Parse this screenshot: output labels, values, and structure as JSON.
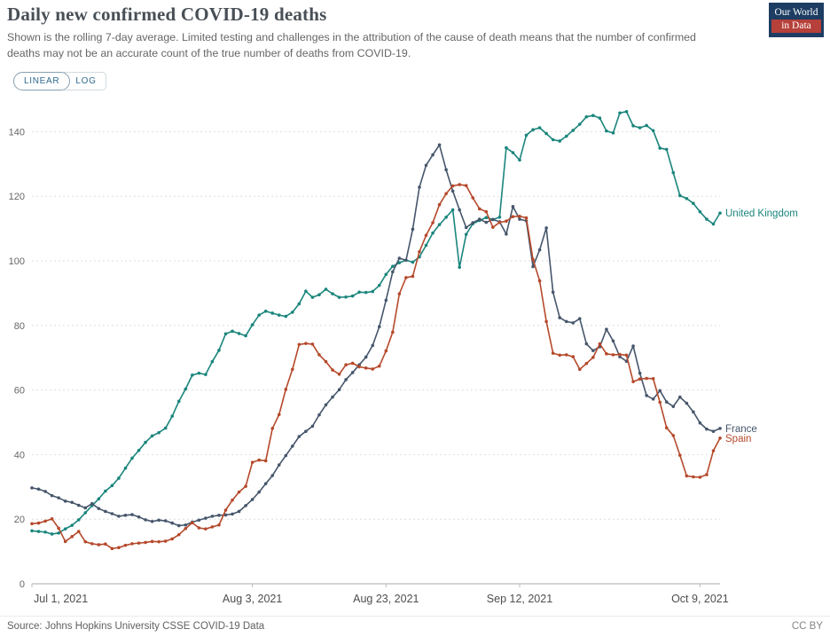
{
  "header": {
    "title": "Daily new confirmed COVID-19 deaths",
    "subtitle": "Shown is the rolling 7-day average. Limited testing and challenges in the attribution of the cause of death means that the number of confirmed deaths may not be an accurate count of the true number of deaths from COVID-19.",
    "logo": {
      "line1": "Our World",
      "line2": "in Data"
    }
  },
  "toolbar": {
    "linear_label": "LINEAR",
    "log_label": "LOG",
    "active_scale": "LINEAR"
  },
  "footer": {
    "source": "Source: Johns Hopkins University CSSE COVID-19 Data",
    "license": "CC BY"
  },
  "chart_data": {
    "type": "line",
    "title": "Daily new confirmed COVID-19 deaths",
    "x_unit": "date (daily points, rolling 7-day average)",
    "x_start_date": "Jul 1, 2021",
    "x_end_date": "Oct 12, 2021",
    "x_ticks": [
      {
        "day": 0,
        "label": "Jul 1, 2021"
      },
      {
        "day": 33,
        "label": "Aug 3, 2021"
      },
      {
        "day": 53,
        "label": "Aug 23, 2021"
      },
      {
        "day": 73,
        "label": "Sep 12, 2021"
      },
      {
        "day": 100,
        "label": "Oct 9, 2021"
      }
    ],
    "y_ticks": [
      0,
      20,
      40,
      60,
      80,
      100,
      120,
      140
    ],
    "ylim": [
      0,
      150
    ],
    "grid": true,
    "legend_position": "right-end-labels",
    "series": [
      {
        "name": "United Kingdom",
        "color": "#1a857c",
        "values": [
          16.4,
          16.2,
          16.0,
          15.4,
          15.7,
          17.0,
          18.1,
          19.8,
          22.0,
          24.2,
          26.3,
          28.7,
          30.4,
          32.7,
          35.8,
          38.9,
          41.3,
          43.8,
          45.8,
          46.8,
          48.2,
          51.9,
          56.5,
          60.3,
          64.6,
          65.2,
          64.8,
          68.8,
          72.3,
          77.4,
          78.2,
          77.5,
          76.8,
          80.2,
          83.2,
          84.4,
          83.8,
          83.2,
          82.8,
          84.1,
          86.7,
          90.6,
          88.7,
          89.5,
          91.2,
          89.8,
          88.7,
          88.8,
          89.1,
          90.3,
          90.2,
          90.5,
          92.4,
          95.8,
          98.3,
          99.4,
          100.2,
          99.6,
          101.2,
          104.8,
          108.6,
          111.2,
          113.5,
          115.8,
          98.0,
          108.2,
          111.5,
          112.5,
          113.4,
          112.8,
          113.5,
          135.0,
          133.5,
          131.2,
          138.9,
          140.6,
          141.2,
          139.4,
          137.5,
          137.1,
          138.6,
          140.4,
          142.3,
          144.6,
          145.0,
          144.2,
          140.2,
          139.6,
          145.8,
          146.2,
          141.8,
          141.2,
          141.9,
          140.3,
          134.9,
          134.5,
          127.3,
          120.2,
          119.3,
          117.8,
          115.2,
          112.9,
          111.4,
          114.8
        ]
      },
      {
        "name": "France",
        "color": "#46566b",
        "values": [
          29.7,
          29.3,
          28.6,
          27.3,
          26.6,
          25.6,
          25.2,
          24.3,
          23.5,
          24.8,
          23.3,
          22.4,
          21.7,
          20.9,
          21.2,
          21.4,
          20.7,
          19.8,
          19.3,
          19.7,
          19.5,
          18.8,
          18.0,
          18.2,
          19.1,
          19.7,
          20.3,
          20.9,
          21.2,
          21.3,
          21.6,
          22.4,
          24.2,
          26.1,
          28.4,
          31.0,
          33.5,
          36.8,
          39.7,
          42.6,
          45.6,
          47.2,
          48.8,
          52.3,
          55.4,
          57.8,
          60.1,
          63.2,
          65.4,
          67.8,
          70.2,
          73.8,
          79.6,
          87.8,
          96.6,
          100.8,
          100.2,
          109.8,
          122.8,
          129.6,
          132.8,
          135.9,
          128.2,
          121.6,
          115.8,
          110.3,
          111.8,
          112.9,
          111.9,
          112.8,
          112.1,
          108.3,
          116.8,
          112.9,
          112.4,
          98.2,
          103.4,
          110.2,
          90.3,
          82.4,
          81.2,
          80.8,
          82.1,
          74.3,
          72.2,
          73.4,
          78.8,
          75.2,
          70.3,
          68.9,
          73.6,
          65.2,
          58.3,
          57.2,
          59.8,
          56.3,
          54.9,
          57.8,
          55.9,
          53.2,
          49.8,
          47.9,
          47.2,
          48.1
        ]
      },
      {
        "name": "Spain",
        "color": "#b5492b",
        "values": [
          18.6,
          18.8,
          19.4,
          20.1,
          17.2,
          13.1,
          14.6,
          16.2,
          13.0,
          12.4,
          12.1,
          12.3,
          10.9,
          11.2,
          11.9,
          12.4,
          12.6,
          12.8,
          13.1,
          13.0,
          13.2,
          13.9,
          15.2,
          17.1,
          18.9,
          17.3,
          17.0,
          17.6,
          18.2,
          22.8,
          25.9,
          28.4,
          30.2,
          37.6,
          38.3,
          38.1,
          48.1,
          52.4,
          60.2,
          66.4,
          74.1,
          74.4,
          74.2,
          70.9,
          68.8,
          66.2,
          64.9,
          67.8,
          68.3,
          67.2,
          66.8,
          66.5,
          67.4,
          72.1,
          77.9,
          89.8,
          94.8,
          95.2,
          102.8,
          107.9,
          111.8,
          117.4,
          120.8,
          123.2,
          123.6,
          123.3,
          119.5,
          116.1,
          115.2,
          110.4,
          111.9,
          112.3,
          113.7,
          113.8,
          113.3,
          100.4,
          93.8,
          81.2,
          71.4,
          70.8,
          70.9,
          70.3,
          66.4,
          68.2,
          70.1,
          74.3,
          71.2,
          70.9,
          71.0,
          70.8,
          62.6,
          63.4,
          63.6,
          63.5,
          56.2,
          48.3,
          45.9,
          39.8,
          33.4,
          33.1,
          33.0,
          33.8,
          41.2,
          45.1
        ]
      }
    ]
  }
}
